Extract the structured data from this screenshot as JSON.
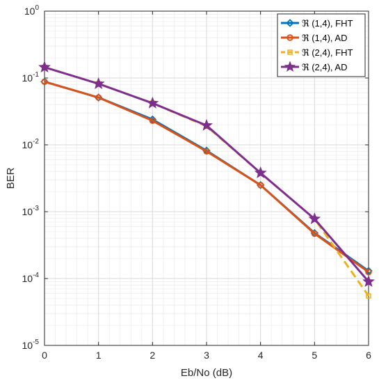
{
  "chart_data": {
    "type": "line",
    "xlabel": "Eb/No (dB)",
    "ylabel": "BER",
    "xscale": "linear",
    "yscale": "log",
    "xlim": [
      0,
      6
    ],
    "ylim": [
      1e-05,
      1
    ],
    "grid": true,
    "legend_position": "top-right",
    "x": [
      0,
      1,
      2,
      3,
      4,
      5,
      6
    ],
    "x_tick_labels": [
      "0",
      "1",
      "2",
      "3",
      "4",
      "5",
      "6"
    ],
    "y_tick_labels": [
      {
        "base": "10",
        "exp": "0"
      },
      {
        "base": "10",
        "exp": "-1"
      },
      {
        "base": "10",
        "exp": "-2"
      },
      {
        "base": "10",
        "exp": "-3"
      },
      {
        "base": "10",
        "exp": "-4"
      },
      {
        "base": "10",
        "exp": "-5"
      }
    ],
    "series": [
      {
        "name": "ℜ (1,4), FHT",
        "color": "#0072BD",
        "marker": "diamond",
        "dash": "solid",
        "values": [
          0.088,
          0.051,
          0.024,
          0.0082,
          0.0025,
          0.00048,
          0.00013
        ]
      },
      {
        "name": "ℜ (1,4), AD",
        "color": "#D95319",
        "marker": "circle",
        "dash": "solid",
        "values": [
          0.088,
          0.051,
          0.023,
          0.008,
          0.0025,
          0.00047,
          0.000125
        ]
      },
      {
        "name": "ℜ (2,4), FHT",
        "color": "#EDB120",
        "marker": "square",
        "dash": "dashed",
        "values": [
          0.145,
          0.082,
          0.042,
          0.019,
          0.0038,
          0.00078,
          5.5e-05
        ]
      },
      {
        "name": "ℜ (2,4), AD",
        "color": "#7E2F8E",
        "marker": "star",
        "dash": "solid",
        "values": [
          0.145,
          0.082,
          0.042,
          0.0195,
          0.0038,
          0.00078,
          9e-05
        ]
      }
    ]
  }
}
